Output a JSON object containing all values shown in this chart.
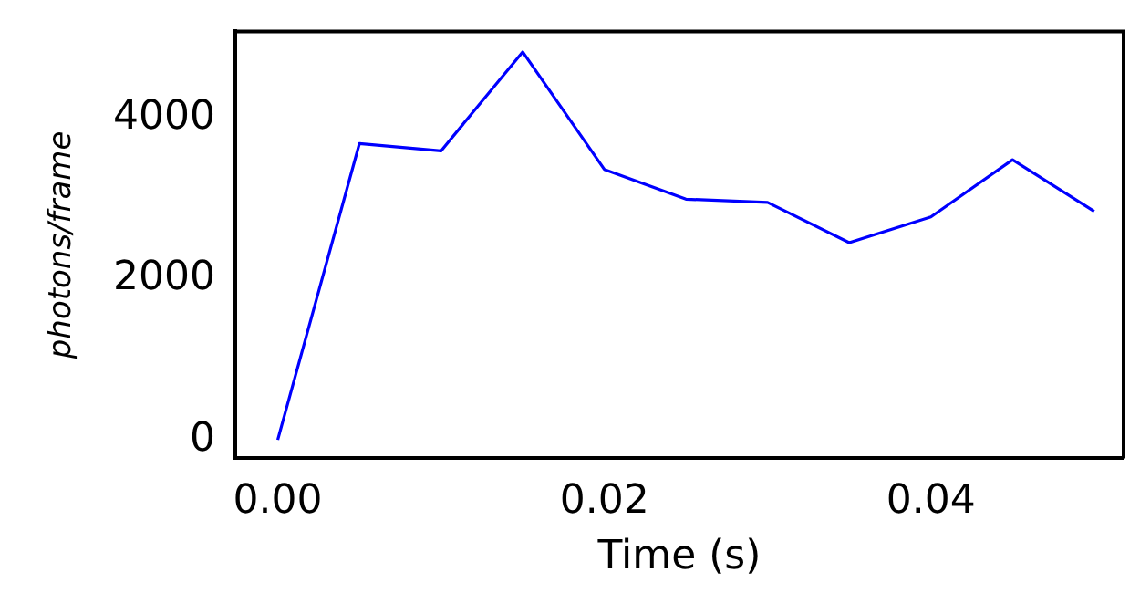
{
  "chart_data": {
    "type": "line",
    "xlabel": "Time (s)",
    "ylabel": "photons/frame",
    "x": [
      0,
      0.005,
      0.01,
      0.015,
      0.02,
      0.025,
      0.03,
      0.035,
      0.04,
      0.045,
      0.05
    ],
    "series": [
      {
        "color": "#0000ff",
        "values": [
          0,
          3680,
          3590,
          4820,
          3360,
          2990,
          2950,
          2450,
          2770,
          3480,
          2840
        ]
      }
    ],
    "xlim": [
      -0.0026,
      0.0518
    ],
    "ylim": [
      -230,
      5075
    ],
    "xticks": [
      {
        "value": 0,
        "label": "0.00"
      },
      {
        "value": 0.02,
        "label": "0.02"
      },
      {
        "value": 0.04,
        "label": "0.04"
      }
    ],
    "yticks": [
      0,
      2000,
      4000
    ],
    "grid": false,
    "legend": false,
    "marker": "none",
    "line_style": "solid"
  }
}
